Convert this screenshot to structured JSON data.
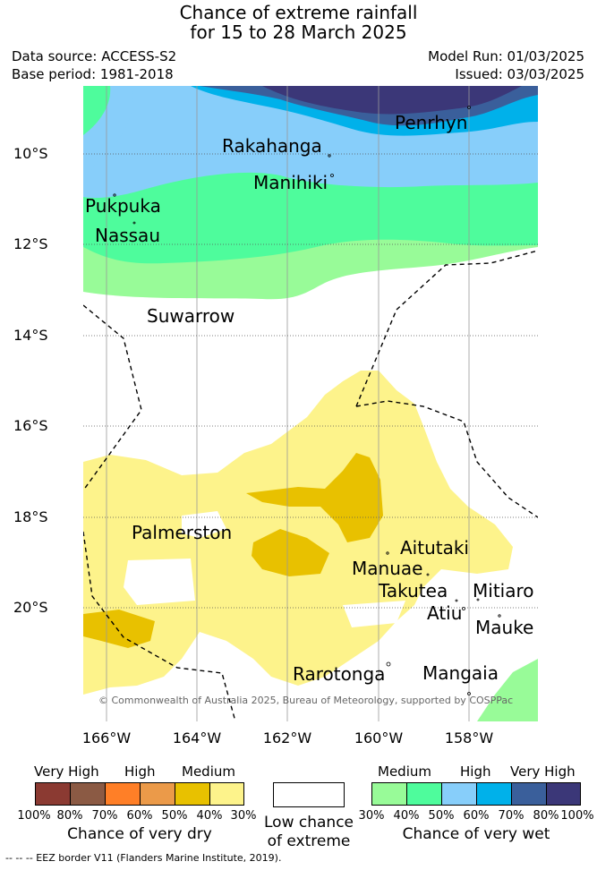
{
  "header": {
    "title_line1": "Chance of extreme rainfall",
    "title_line2": "for 15 to 28 March 2025",
    "data_source": "Data source: ACCESS-S2",
    "base_period": "Base period: 1981-2018",
    "model_run": "Model Run: 01/03/2025",
    "issued": "Issued: 03/03/2025"
  },
  "map": {
    "lat_ticks": [
      "10°S",
      "12°S",
      "14°S",
      "16°S",
      "18°S",
      "20°S"
    ],
    "lon_ticks": [
      "166°W",
      "164°W",
      "162°W",
      "160°W",
      "158°W"
    ],
    "places": {
      "penrhyn": "Penrhyn",
      "rakahanga": "Rakahanga",
      "manihiki": "Manihiki",
      "pukpuka": "Pukpuka",
      "nassau": "Nassau",
      "suwarrow": "Suwarrow",
      "palmerston": "Palmerston",
      "aitutaki": "Aitutaki",
      "manuae": "Manuae",
      "takutea": "Takutea",
      "mitiaro": "Mitiaro",
      "atiu": "Atiu",
      "mauke": "Mauke",
      "rarotonga": "Rarotonga",
      "mangaia": "Mangaia"
    },
    "copyright": "© Commonwealth of Australia 2025, Bureau of Meteorology, supported by COSPPac"
  },
  "legend": {
    "dry": {
      "headers": [
        "Very High",
        "High",
        "Medium"
      ],
      "ticks": [
        "100%",
        "80%",
        "70%",
        "60%",
        "50%",
        "40%",
        "30%"
      ],
      "title": "Chance of very dry",
      "colors": [
        "#8b3a32",
        "#8b5a44",
        "#ff7f27",
        "#eb9a49",
        "#e8c100",
        "#fdf38b"
      ]
    },
    "low": {
      "title_line1": "Low chance",
      "title_line2": "of extreme",
      "color": "#ffffff"
    },
    "wet": {
      "headers": [
        "Medium",
        "High",
        "Very High"
      ],
      "ticks": [
        "30%",
        "40%",
        "50%",
        "60%",
        "70%",
        "80%",
        "100%"
      ],
      "title": "Chance of very wet",
      "colors": [
        "#98fb98",
        "#4efc9c",
        "#87cefa",
        "#00b1ea",
        "#3a5f9b",
        "#3b3778"
      ]
    }
  },
  "footer": {
    "eez_note": "--  --  -- EEZ border V11 (Flanders Marine Institute, 2019)."
  }
}
